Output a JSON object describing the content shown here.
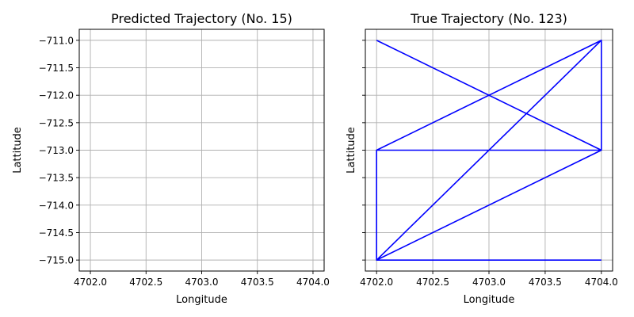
{
  "chart_data": [
    {
      "type": "line",
      "title": "Predicted Trajectory (No. 15)",
      "xlabel": "Longitude",
      "ylabel": "Lattitude",
      "xlim": [
        4701.9,
        4704.1
      ],
      "ylim": [
        -715.2,
        -710.8
      ],
      "xticks": [
        4702.0,
        4702.5,
        4703.0,
        4703.5,
        4704.0
      ],
      "xtick_labels": [
        "4702.0",
        "4702.5",
        "4703.0",
        "4703.5",
        "4704.0"
      ],
      "yticks": [
        -711.0,
        -711.5,
        -712.0,
        -712.5,
        -713.0,
        -713.5,
        -714.0,
        -714.5,
        -715.0
      ],
      "ytick_labels": [
        "−711.0",
        "−711.5",
        "−712.0",
        "−712.5",
        "−713.0",
        "−713.5",
        "−714.0",
        "−714.5",
        "−715.0"
      ],
      "grid": true,
      "series": [
        {
          "color": "#0000ff",
          "points": []
        }
      ]
    },
    {
      "type": "line",
      "title": "True Trajectory (No. 123)",
      "xlabel": "Longitude",
      "ylabel": "Lattitude",
      "xlim": [
        4701.9,
        4704.1
      ],
      "ylim": [
        -715.2,
        -710.8
      ],
      "xticks": [
        4702.0,
        4702.5,
        4703.0,
        4703.5,
        4704.0
      ],
      "xtick_labels": [
        "4702.0",
        "4702.5",
        "4703.0",
        "4703.5",
        "4704.0"
      ],
      "yticks": [
        -711.0,
        -711.5,
        -712.0,
        -712.5,
        -713.0,
        -713.5,
        -714.0,
        -714.5,
        -715.0
      ],
      "ytick_labels": [],
      "grid": true,
      "series": [
        {
          "color": "#0000ff",
          "points": [
            [
              4702,
              -711
            ],
            [
              4704,
              -713
            ],
            [
              4702,
              -713
            ],
            [
              4704,
              -711
            ],
            [
              4702,
              -715
            ],
            [
              4704,
              -713
            ],
            [
              4702,
              -715
            ],
            [
              4702,
              -713
            ],
            [
              4704,
              -713
            ],
            [
              4704,
              -711
            ],
            [
              4702,
              -715
            ],
            [
              4704,
              -715
            ]
          ]
        }
      ]
    }
  ]
}
